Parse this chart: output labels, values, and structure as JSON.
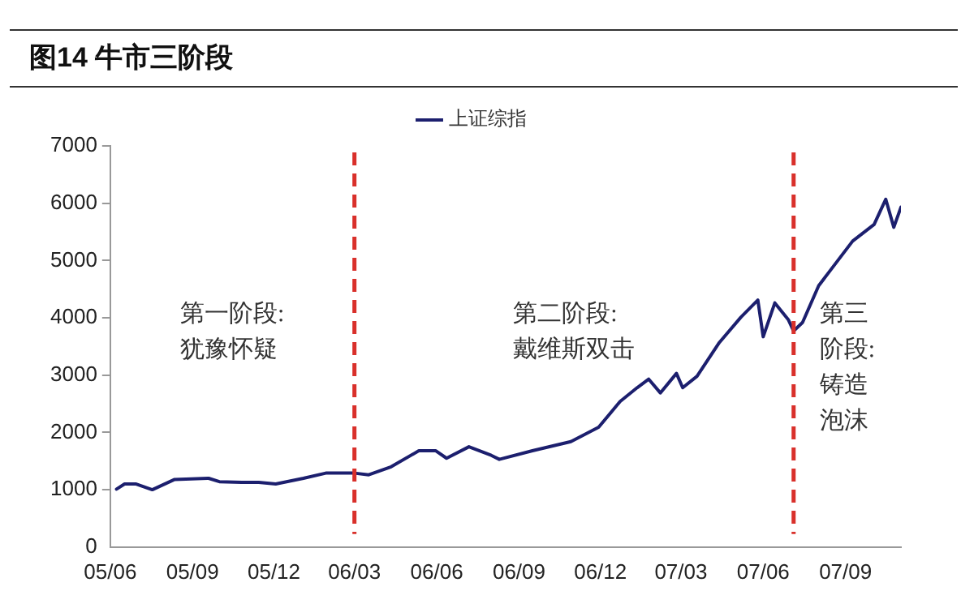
{
  "chart_data": {
    "type": "line",
    "title": "图14 牛市三阶段",
    "x": [
      "2005-06-08",
      "2005-06-17",
      "2005-06-30",
      "2005-07-18",
      "2005-08-12",
      "2005-09-19",
      "2005-10-01",
      "2005-10-26",
      "2005-11-14",
      "2005-12-03",
      "2006-01-03",
      "2006-01-28",
      "2006-03-01",
      "2006-03-17",
      "2006-04-11",
      "2006-05-12",
      "2006-05-31",
      "2006-06-12",
      "2006-07-07",
      "2006-08-01",
      "2006-08-10",
      "2006-09-16",
      "2006-10-29",
      "2006-11-29",
      "2006-12-23",
      "2007-01-11",
      "2007-01-24",
      "2007-02-06",
      "2007-02-24",
      "2007-03-03",
      "2007-03-19",
      "2007-04-13",
      "2007-05-07",
      "2007-05-26",
      "2007-06-01",
      "2007-06-14",
      "2007-06-29",
      "2007-07-05",
      "2007-07-15",
      "2007-08-02",
      "2007-08-21",
      "2007-09-09",
      "2007-10-03",
      "2007-10-16",
      "2007-10-25",
      "2007-11-02"
    ],
    "series": [
      {
        "name": "上证综指",
        "color": "#1c1f6e",
        "values": [
          1010,
          1100,
          1100,
          1000,
          1180,
          1200,
          1140,
          1130,
          1130,
          1100,
          1200,
          1290,
          1290,
          1260,
          1400,
          1680,
          1680,
          1550,
          1750,
          1600,
          1530,
          1680,
          1840,
          2090,
          2540,
          2780,
          2930,
          2690,
          3030,
          2780,
          2980,
          3570,
          4010,
          4310,
          3670,
          4260,
          3970,
          3770,
          3920,
          4560,
          4950,
          5340,
          5630,
          6070,
          5580,
          5930
        ]
      }
    ],
    "xlim": [
      "2005-06-01",
      "2007-11-02"
    ],
    "xticks": [
      {
        "value": "2005-06-01",
        "label": "05/06"
      },
      {
        "value": "2005-09-01",
        "label": "05/09"
      },
      {
        "value": "2005-12-01",
        "label": "05/12"
      },
      {
        "value": "2006-03-01",
        "label": "06/03"
      },
      {
        "value": "2006-06-01",
        "label": "06/06"
      },
      {
        "value": "2006-09-01",
        "label": "06/09"
      },
      {
        "value": "2006-12-01",
        "label": "06/12"
      },
      {
        "value": "2007-03-01",
        "label": "07/03"
      },
      {
        "value": "2007-06-01",
        "label": "07/06"
      },
      {
        "value": "2007-09-01",
        "label": "07/09"
      }
    ],
    "ylim": [
      0,
      7000
    ],
    "yticks": [
      0,
      1000,
      2000,
      3000,
      4000,
      5000,
      6000,
      7000
    ],
    "ref_lines": [
      {
        "axis": "x",
        "value": "2006-03-01",
        "color": "#d9302b",
        "line_style": "dashed"
      },
      {
        "axis": "x",
        "value": "2007-07-05",
        "color": "#d9302b",
        "line_style": "dashed"
      }
    ],
    "annotations": [
      "第一阶段:犹豫怀疑",
      "第二阶段:戴维斯双击",
      "第三阶段:铸造泡沫"
    ],
    "legend": "top",
    "marker": "none",
    "line_style": "solid"
  }
}
